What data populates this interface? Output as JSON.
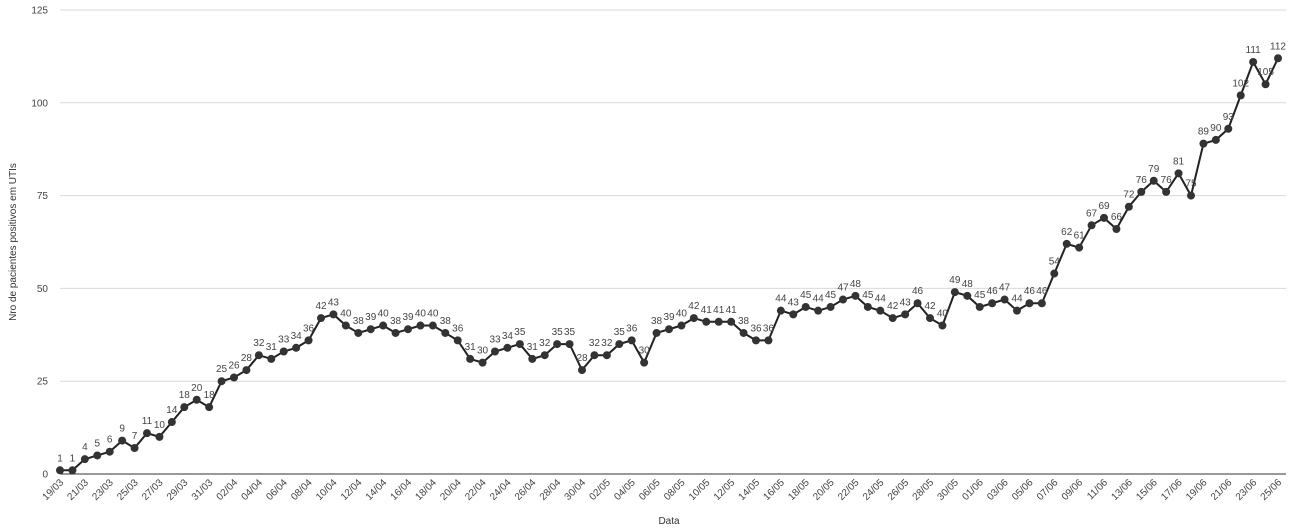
{
  "chart_data": {
    "type": "line",
    "title": "",
    "xlabel": "Data",
    "ylabel": "Nro de pacientes positivos em UTIs",
    "ylim": [
      0,
      125
    ],
    "yticks": [
      0,
      25,
      50,
      75,
      100,
      125
    ],
    "grid": true,
    "legend": "none",
    "colors": {
      "line": "#222222",
      "point": "#333333",
      "grid": "#d9d9d9"
    },
    "x": [
      "19/03",
      "20/03",
      "21/03",
      "22/03",
      "23/03",
      "24/03",
      "25/03",
      "26/03",
      "27/03",
      "28/03",
      "29/03",
      "30/03",
      "31/03",
      "01/04",
      "02/04",
      "03/04",
      "04/04",
      "05/04",
      "06/04",
      "07/04",
      "08/04",
      "09/04",
      "10/04",
      "11/04",
      "12/04",
      "13/04",
      "14/04",
      "15/04",
      "16/04",
      "17/04",
      "18/04",
      "19/04",
      "20/04",
      "21/04",
      "22/04",
      "23/04",
      "24/04",
      "25/04",
      "26/04",
      "27/04",
      "28/04",
      "29/04",
      "30/04",
      "01/05",
      "02/05",
      "03/05",
      "04/05",
      "05/05",
      "06/05",
      "07/05",
      "08/05",
      "09/05",
      "10/05",
      "11/05",
      "12/05",
      "13/05",
      "14/05",
      "15/05",
      "16/05",
      "17/05",
      "18/05",
      "19/05",
      "20/05",
      "21/05",
      "22/05",
      "23/05",
      "24/05",
      "25/05",
      "26/05",
      "27/05",
      "28/05",
      "29/05",
      "30/05",
      "31/05",
      "01/06",
      "02/06",
      "03/06",
      "04/06",
      "05/06",
      "06/06",
      "07/06",
      "08/06",
      "09/06",
      "10/06",
      "11/06",
      "12/06",
      "13/06",
      "14/06",
      "15/06",
      "16/06",
      "17/06",
      "18/06",
      "19/06",
      "20/06",
      "21/06",
      "22/06",
      "23/06",
      "24/06",
      "25/06"
    ],
    "x_tick_labels": [
      "19/03",
      "21/03",
      "23/03",
      "25/03",
      "27/03",
      "29/03",
      "31/03",
      "02/04",
      "04/04",
      "06/04",
      "08/04",
      "10/04",
      "12/04",
      "14/04",
      "16/04",
      "18/04",
      "20/04",
      "22/04",
      "24/04",
      "26/04",
      "28/04",
      "30/04",
      "02/05",
      "04/05",
      "06/05",
      "08/05",
      "10/05",
      "12/05",
      "14/05",
      "16/05",
      "18/05",
      "20/05",
      "22/05",
      "24/05",
      "26/05",
      "28/05",
      "30/05",
      "01/06",
      "03/06",
      "05/06",
      "07/06",
      "09/06",
      "11/06",
      "13/06",
      "15/06",
      "17/06",
      "19/06",
      "21/06",
      "23/06",
      "25/06"
    ],
    "series": [
      {
        "name": "",
        "values": [
          1,
          1,
          4,
          5,
          6,
          9,
          7,
          11,
          10,
          14,
          18,
          20,
          18,
          25,
          26,
          28,
          32,
          31,
          33,
          34,
          36,
          42,
          43,
          40,
          38,
          39,
          40,
          38,
          39,
          40,
          40,
          38,
          36,
          31,
          30,
          33,
          34,
          35,
          31,
          32,
          35,
          35,
          28,
          32,
          32,
          35,
          36,
          30,
          38,
          39,
          40,
          42,
          41,
          41,
          41,
          38,
          36,
          36,
          44,
          43,
          45,
          44,
          45,
          47,
          48,
          45,
          44,
          42,
          43,
          46,
          42,
          40,
          49,
          48,
          45,
          46,
          47,
          44,
          46,
          46,
          54,
          62,
          61,
          67,
          69,
          66,
          72,
          76,
          79,
          76,
          81,
          75,
          89,
          90,
          93,
          102,
          111,
          105,
          112
        ]
      }
    ]
  }
}
